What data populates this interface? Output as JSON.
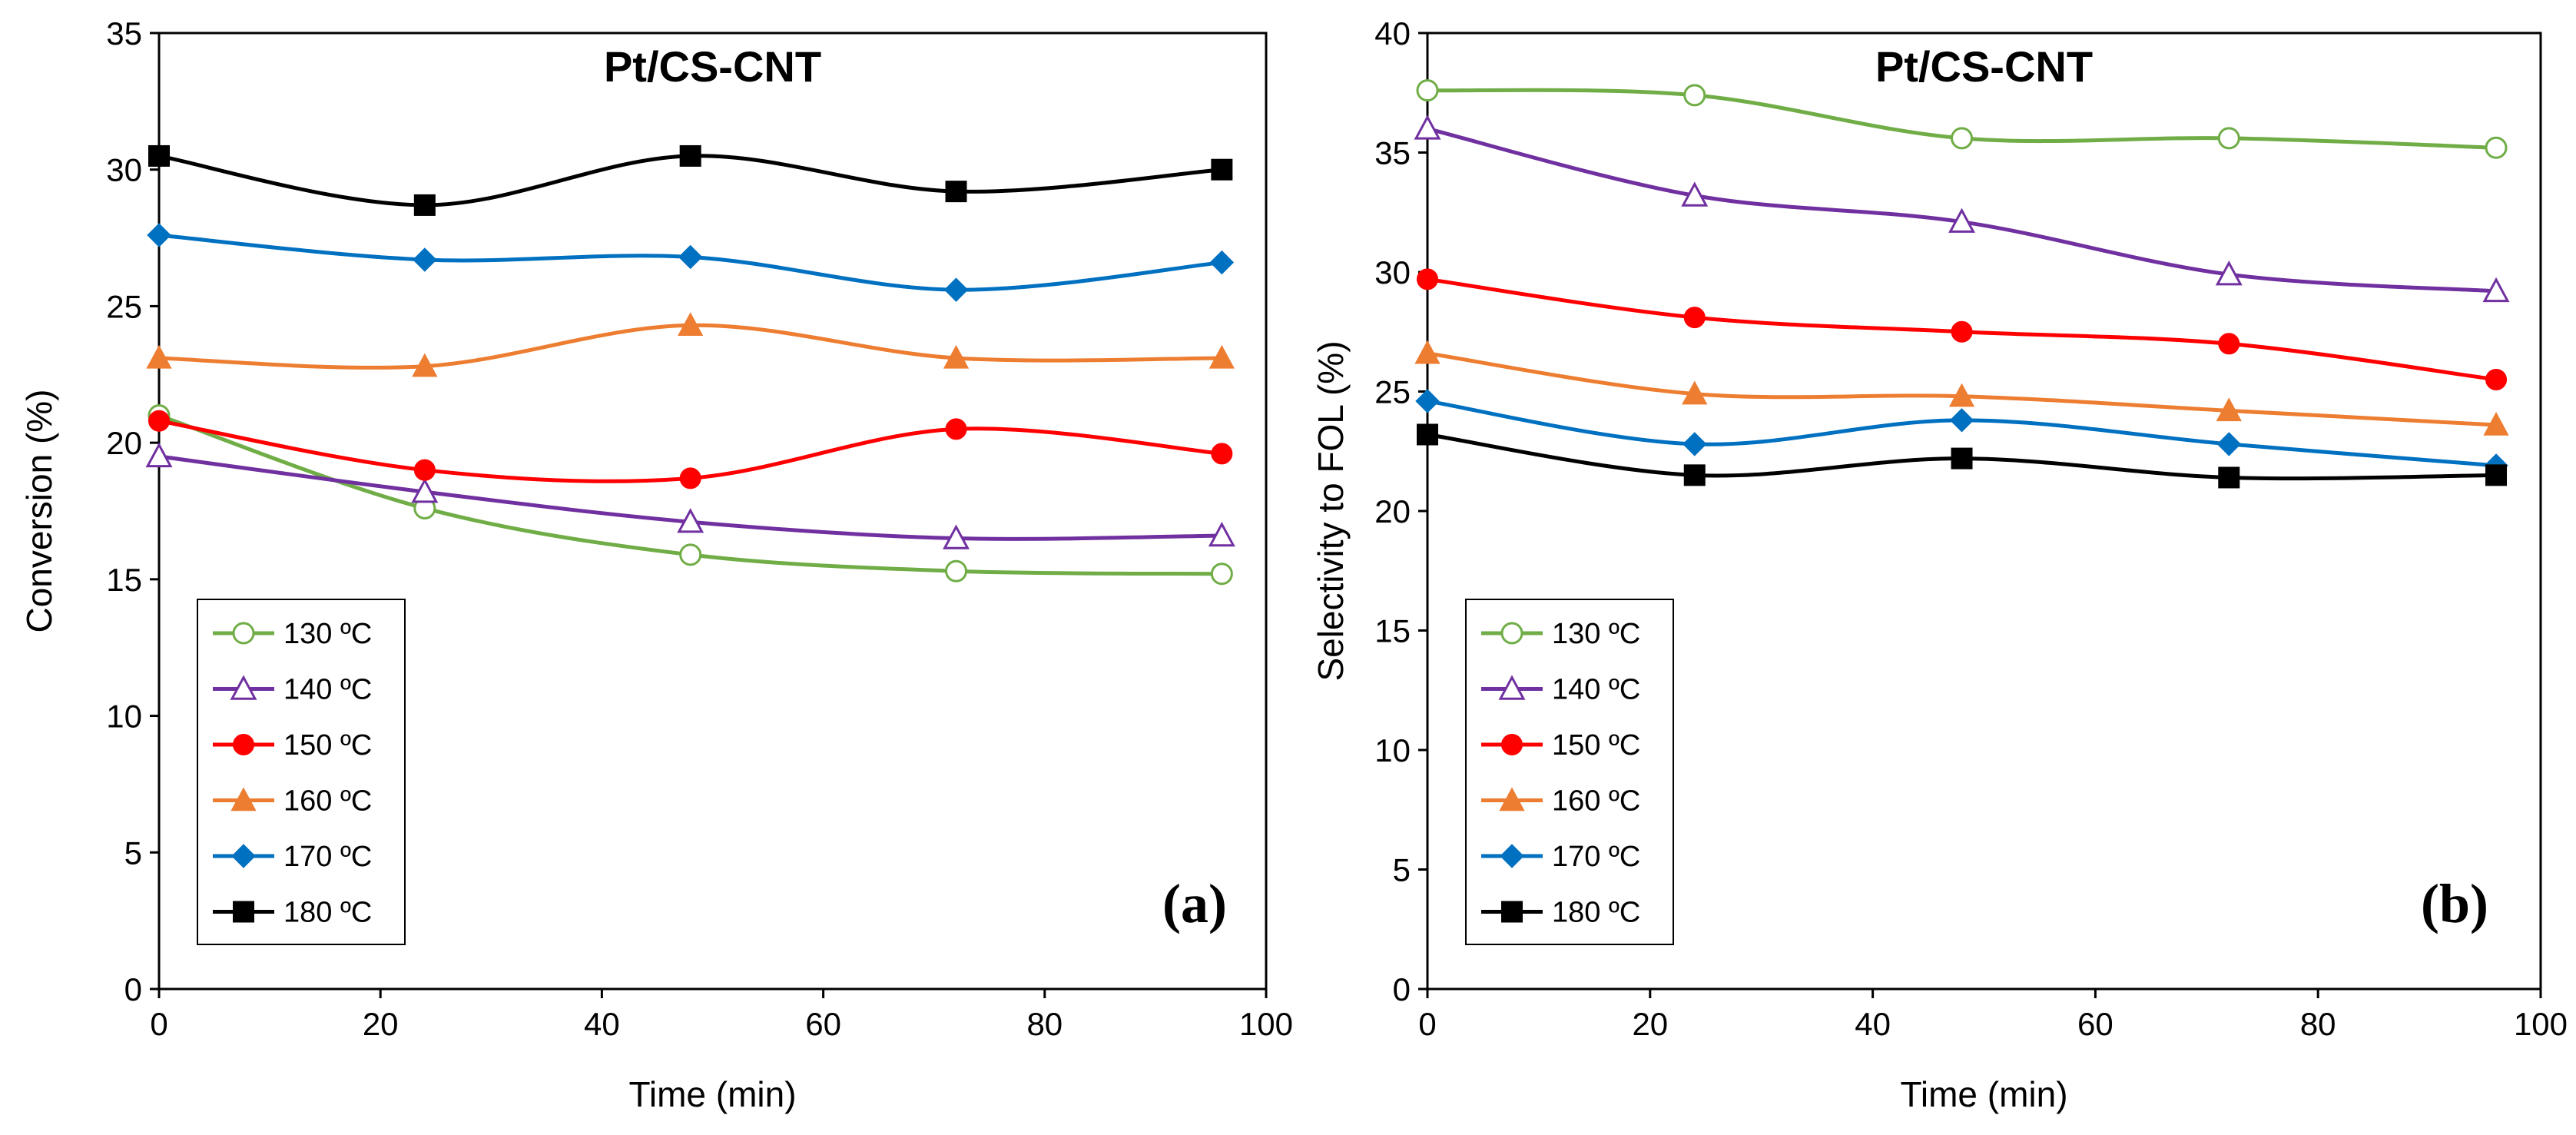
{
  "chart_data": [
    {
      "panel": "(a)",
      "type": "line",
      "title": "Pt/CS-CNT",
      "xlabel": "Time (min)",
      "ylabel": "Conversion (%)",
      "xlim": [
        0,
        100
      ],
      "ylim": [
        0,
        35
      ],
      "xticks": [
        "0",
        "20",
        "40",
        "60",
        "80",
        "100"
      ],
      "yticks": [
        "0",
        "5",
        "10",
        "15",
        "20",
        "25",
        "30",
        "35"
      ],
      "x": [
        0,
        24,
        48,
        72,
        96
      ],
      "legend_position": "bottom-left",
      "series": [
        {
          "name": "130 ºC",
          "color": "#70ad47",
          "marker": "circle-open",
          "values": [
            21.0,
            17.6,
            15.9,
            15.3,
            15.2
          ]
        },
        {
          "name": "140 ºC",
          "color": "#7030a0",
          "marker": "triangle-open",
          "values": [
            19.5,
            18.2,
            17.1,
            16.5,
            16.6
          ]
        },
        {
          "name": "150 ºC",
          "color": "#ff0000",
          "marker": "circle-filled",
          "values": [
            20.8,
            19.0,
            18.7,
            20.5,
            19.6
          ]
        },
        {
          "name": "160 ºC",
          "color": "#ed7d31",
          "marker": "triangle-filled",
          "values": [
            23.1,
            22.8,
            24.3,
            23.1,
            23.1
          ]
        },
        {
          "name": "170 ºC",
          "color": "#0070c0",
          "marker": "diamond-filled",
          "values": [
            27.6,
            26.7,
            26.8,
            25.6,
            26.6
          ]
        },
        {
          "name": "180 ºC",
          "color": "#000000",
          "marker": "square-filled",
          "values": [
            30.5,
            28.7,
            30.5,
            29.2,
            30.0
          ]
        }
      ]
    },
    {
      "panel": "(b)",
      "type": "line",
      "title": "Pt/CS-CNT",
      "xlabel": "Time (min)",
      "ylabel": "Selectivity to FOL (%)",
      "xlim": [
        0,
        100
      ],
      "ylim": [
        0,
        40
      ],
      "xticks": [
        "0",
        "20",
        "40",
        "60",
        "80",
        "100"
      ],
      "yticks": [
        "0",
        "5",
        "10",
        "15",
        "20",
        "25",
        "30",
        "35",
        "40"
      ],
      "x": [
        0,
        24,
        48,
        72,
        96
      ],
      "legend_position": "bottom-left",
      "series": [
        {
          "name": "130 ºC",
          "color": "#70ad47",
          "marker": "circle-open",
          "values": [
            37.6,
            37.4,
            35.6,
            35.6,
            35.2
          ]
        },
        {
          "name": "140 ºC",
          "color": "#7030a0",
          "marker": "triangle-open",
          "values": [
            36.0,
            33.2,
            32.1,
            29.9,
            29.2
          ]
        },
        {
          "name": "150 ºC",
          "color": "#ff0000",
          "marker": "circle-filled",
          "values": [
            29.7,
            28.1,
            27.5,
            27.0,
            25.5
          ]
        },
        {
          "name": "160 ºC",
          "color": "#ed7d31",
          "marker": "triangle-filled",
          "values": [
            26.6,
            24.9,
            24.8,
            24.2,
            23.6
          ]
        },
        {
          "name": "170 ºC",
          "color": "#0070c0",
          "marker": "diamond-filled",
          "values": [
            24.6,
            22.8,
            23.8,
            22.8,
            21.9
          ]
        },
        {
          "name": "180 ºC",
          "color": "#000000",
          "marker": "square-filled",
          "values": [
            23.2,
            21.5,
            22.2,
            21.4,
            21.5
          ]
        }
      ]
    }
  ]
}
